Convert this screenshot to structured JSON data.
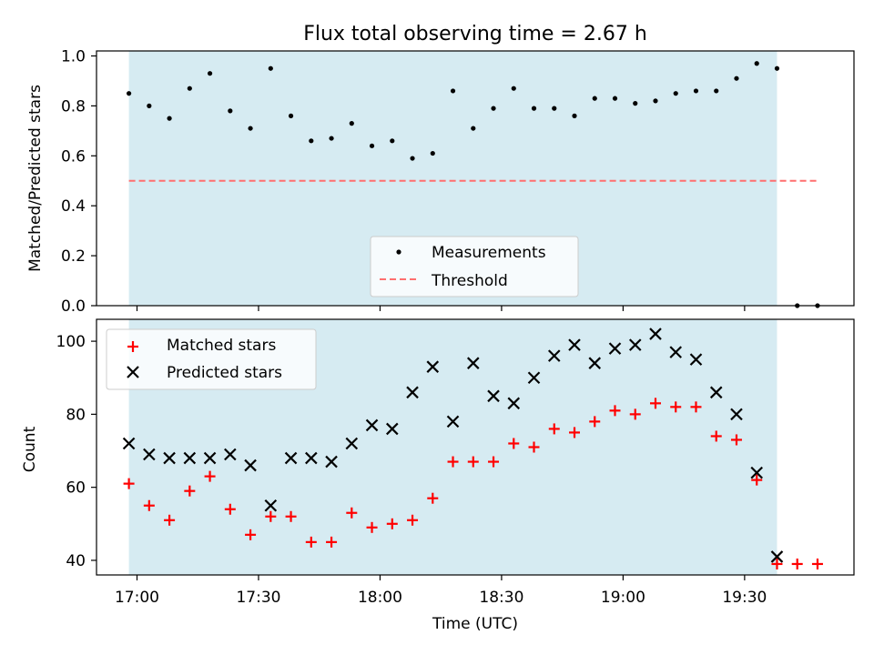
{
  "title": "Flux total observing time = 2.67 h",
  "colors": {
    "shade": "#add8e6",
    "threshold": "#ff6f6f",
    "matched": "#ff0000",
    "predicted": "#000000",
    "measurements": "#000000"
  },
  "chart_data": [
    {
      "type": "scatter",
      "panel": "top",
      "ylabel": "Matched/Predicted stars",
      "ylim": [
        0.0,
        1.02
      ],
      "yticks": [
        0.0,
        0.2,
        0.4,
        0.6,
        0.8,
        1.0
      ],
      "ytick_labels": [
        "0.0",
        "0.2",
        "0.4",
        "0.6",
        "0.8",
        "1.0"
      ],
      "shaded_span": [
        "16:58",
        "19:38"
      ],
      "legend": {
        "placement": "lower center",
        "entries": [
          "Measurements",
          "Threshold"
        ]
      },
      "series": [
        {
          "name": "Measurements",
          "marker": "dot",
          "x": [
            "16:58",
            "17:03",
            "17:08",
            "17:13",
            "17:18",
            "17:23",
            "17:28",
            "17:33",
            "17:38",
            "17:43",
            "17:48",
            "17:53",
            "17:58",
            "18:03",
            "18:08",
            "18:13",
            "18:18",
            "18:23",
            "18:28",
            "18:33",
            "18:38",
            "18:43",
            "18:48",
            "18:53",
            "18:58",
            "19:03",
            "19:08",
            "19:13",
            "19:18",
            "19:23",
            "19:28",
            "19:33",
            "19:38",
            "19:43",
            "19:48"
          ],
          "y": [
            0.85,
            0.8,
            0.75,
            0.87,
            0.93,
            0.78,
            0.71,
            0.95,
            0.76,
            0.66,
            0.67,
            0.73,
            0.64,
            0.66,
            0.59,
            0.61,
            0.86,
            0.71,
            0.79,
            0.87,
            0.79,
            0.79,
            0.76,
            0.83,
            0.83,
            0.81,
            0.82,
            0.85,
            0.86,
            0.86,
            0.91,
            0.97,
            0.95,
            0.0,
            0.0
          ]
        },
        {
          "name": "Threshold",
          "style": "dashed",
          "x": [
            "16:58",
            "19:48"
          ],
          "y": [
            0.5,
            0.5
          ]
        }
      ]
    },
    {
      "type": "scatter",
      "panel": "bottom",
      "xlabel": "Time (UTC)",
      "ylabel": "Count",
      "ylim": [
        36,
        106
      ],
      "yticks": [
        40,
        60,
        80,
        100
      ],
      "ytick_labels": [
        "40",
        "60",
        "80",
        "100"
      ],
      "xlim": [
        "16:50",
        "19:57"
      ],
      "xticks": [
        "17:00",
        "17:30",
        "18:00",
        "18:30",
        "19:00",
        "19:30"
      ],
      "xtick_labels": [
        "17:00",
        "17:30",
        "18:00",
        "18:30",
        "19:00",
        "19:30"
      ],
      "shaded_span": [
        "16:58",
        "19:38"
      ],
      "legend": {
        "placement": "upper left",
        "entries": [
          "Matched stars",
          "Predicted stars"
        ]
      },
      "series": [
        {
          "name": "Matched stars",
          "marker": "plus",
          "x": [
            "16:58",
            "17:03",
            "17:08",
            "17:13",
            "17:18",
            "17:23",
            "17:28",
            "17:33",
            "17:38",
            "17:43",
            "17:48",
            "17:53",
            "17:58",
            "18:03",
            "18:08",
            "18:13",
            "18:18",
            "18:23",
            "18:28",
            "18:33",
            "18:38",
            "18:43",
            "18:48",
            "18:53",
            "18:58",
            "19:03",
            "19:08",
            "19:13",
            "19:18",
            "19:23",
            "19:28",
            "19:33",
            "19:38",
            "19:43",
            "19:48"
          ],
          "y": [
            61,
            55,
            51,
            59,
            63,
            54,
            47,
            52,
            52,
            45,
            45,
            53,
            49,
            50,
            51,
            57,
            67,
            67,
            67,
            72,
            71,
            76,
            75,
            78,
            81,
            80,
            83,
            82,
            82,
            74,
            73,
            62,
            39,
            39,
            39
          ]
        },
        {
          "name": "Predicted stars",
          "marker": "x",
          "x": [
            "16:58",
            "17:03",
            "17:08",
            "17:13",
            "17:18",
            "17:23",
            "17:28",
            "17:33",
            "17:38",
            "17:43",
            "17:48",
            "17:53",
            "17:58",
            "18:03",
            "18:08",
            "18:13",
            "18:18",
            "18:23",
            "18:28",
            "18:33",
            "18:38",
            "18:43",
            "18:48",
            "18:53",
            "18:58",
            "19:03",
            "19:08",
            "19:13",
            "19:18",
            "19:23",
            "19:28",
            "19:33",
            "19:38"
          ],
          "y": [
            72,
            69,
            68,
            68,
            68,
            69,
            66,
            55,
            68,
            68,
            67,
            72,
            77,
            76,
            86,
            93,
            78,
            94,
            85,
            83,
            90,
            96,
            99,
            94,
            98,
            99,
            102,
            97,
            95,
            86,
            80,
            64,
            41
          ]
        }
      ]
    }
  ]
}
